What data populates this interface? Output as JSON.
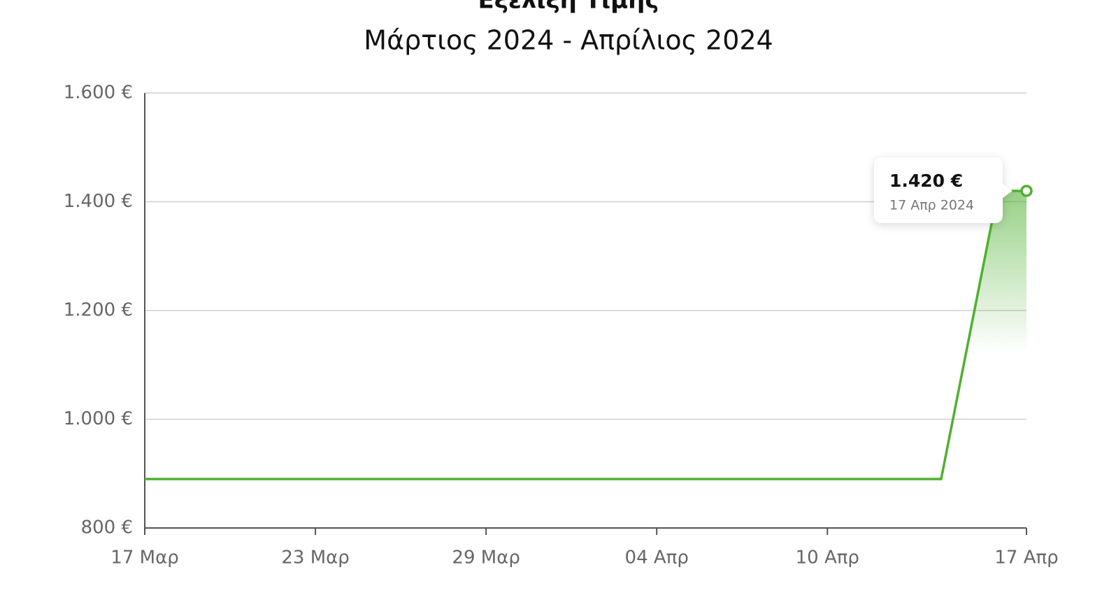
{
  "chart_data": {
    "type": "line",
    "title": "Εξέλιξη Τιμής",
    "subtitle": "Μάρτιος 2024 - Απρίλιος 2024",
    "x": [
      "2024-03-17",
      "2024-04-14",
      "2024-04-16",
      "2024-04-17"
    ],
    "values": [
      890,
      890,
      1420,
      1420
    ],
    "color": "#4fb030",
    "xlim": [
      "2024-03-17",
      "2024-04-17"
    ],
    "xticks": [
      {
        "value": "2024-03-17",
        "label": "17 Μαρ"
      },
      {
        "value": "2024-03-23",
        "label": "23 Μαρ"
      },
      {
        "value": "2024-03-29",
        "label": "29 Μαρ"
      },
      {
        "value": "2024-04-04",
        "label": "04 Απρ"
      },
      {
        "value": "2024-04-10",
        "label": "10 Απρ"
      },
      {
        "value": "2024-04-17",
        "label": "17 Απρ"
      }
    ],
    "ylim": [
      800,
      1600
    ],
    "yticks": [
      {
        "value": 800,
        "label": "800 €"
      },
      {
        "value": 1000,
        "label": "1.000 €"
      },
      {
        "value": 1200,
        "label": "1.200 €"
      },
      {
        "value": 1400,
        "label": "1.400 €"
      },
      {
        "value": 1600,
        "label": "1.600 €"
      }
    ],
    "grid": true,
    "tooltip": {
      "label": "1.420 €",
      "date": "17 Απρ 2024"
    }
  }
}
